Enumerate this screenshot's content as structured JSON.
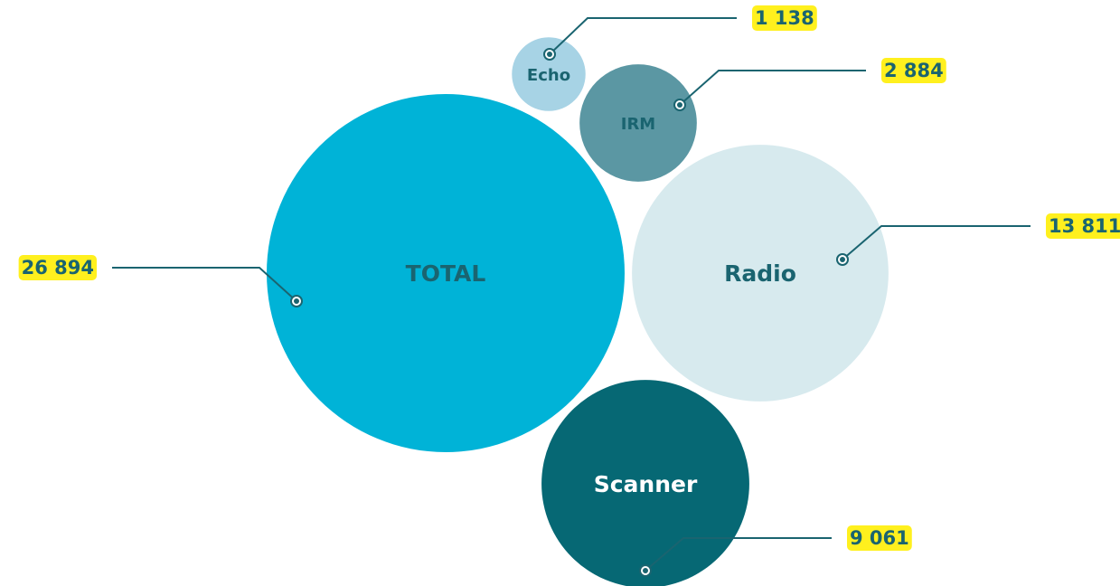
{
  "chart_data": {
    "type": "bubble",
    "categories": [
      "TOTAL",
      "Radio",
      "Scanner",
      "IRM",
      "Echo"
    ],
    "values": [
      26894,
      13811,
      9061,
      2884,
      1138
    ],
    "value_labels": [
      "26 894",
      "13 811",
      "9 061",
      "2 884",
      "1 138"
    ],
    "colors": [
      "#00b3d7",
      "#d7eaee",
      "#066874",
      "#5b97a3",
      "#a7d3e5"
    ]
  }
}
